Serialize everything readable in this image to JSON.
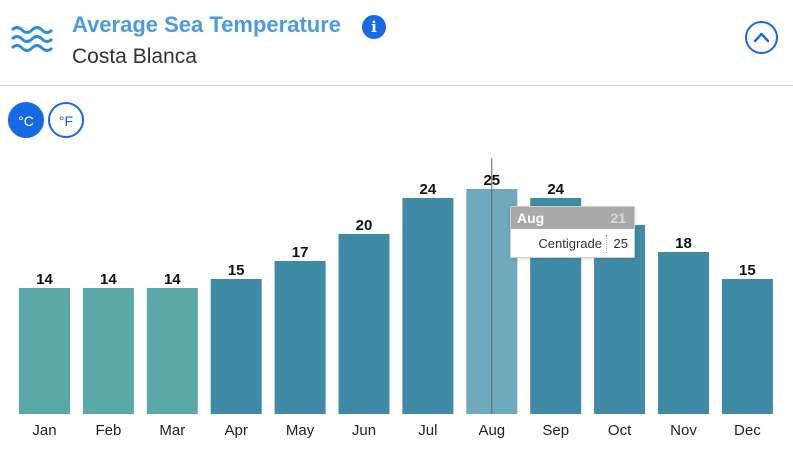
{
  "header": {
    "title": "Average Sea Temperature",
    "subtitle": "Costa Blanca",
    "info_icon": "info-icon",
    "waves_icon": "waves-icon",
    "collapse_icon": "chevron-up-icon"
  },
  "units": {
    "celsius": "°C",
    "fahrenheit": "°F",
    "selected": "celsius"
  },
  "tooltip": {
    "month": "Aug",
    "series": "Centigrade",
    "value": "25",
    "ghost_value": "21"
  },
  "colors": {
    "accent": "#1668e3",
    "title": "#4a9be0",
    "winter_bar": "#5aa8a8",
    "bar": "#3f8aa4",
    "hover_bar": "#6ea9bd"
  },
  "chart_data": {
    "type": "bar",
    "categories": [
      "Jan",
      "Feb",
      "Mar",
      "Apr",
      "May",
      "Jun",
      "Jul",
      "Aug",
      "Sep",
      "Oct",
      "Nov",
      "Dec"
    ],
    "values": [
      14,
      14,
      14,
      15,
      17,
      20,
      24,
      25,
      24,
      21,
      18,
      15
    ],
    "ylim": [
      0,
      30
    ],
    "grid": false,
    "legend": "none",
    "highlighted": "Aug"
  }
}
